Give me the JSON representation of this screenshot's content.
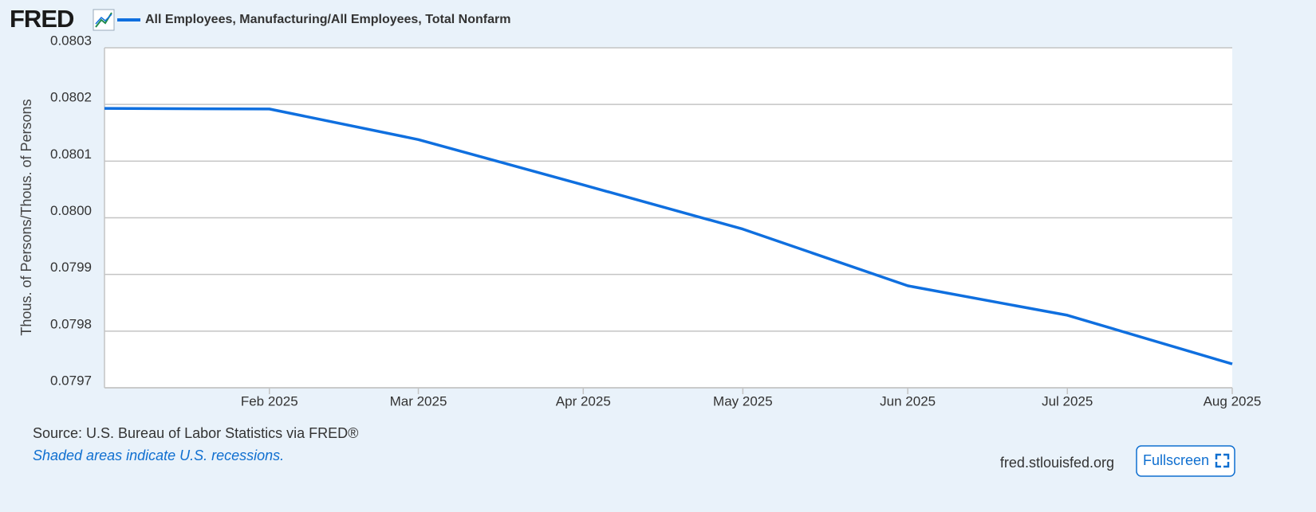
{
  "logo": "FRED",
  "chart_data": {
    "type": "line",
    "y_label": "Thous. of Persons/Thous. of Persons",
    "x": [
      "2025-01",
      "2025-02",
      "2025-03",
      "2025-04",
      "2025-05",
      "2025-06",
      "2025-07",
      "2025-08"
    ],
    "series": [
      {
        "name": "All Employees, Manufacturing/All Employees, Total Nonfarm",
        "color": "#0f6fdf",
        "values": [
          0.080193,
          0.080192,
          0.080138,
          0.080058,
          0.07998,
          0.07988,
          0.079828,
          0.079742
        ]
      }
    ],
    "xlim": [
      "2025-01",
      "2025-08"
    ],
    "xticks": [
      {
        "value": "2025-02",
        "label": "Feb 2025"
      },
      {
        "value": "2025-03",
        "label": "Mar 2025"
      },
      {
        "value": "2025-04",
        "label": "Apr 2025"
      },
      {
        "value": "2025-05",
        "label": "May 2025"
      },
      {
        "value": "2025-06",
        "label": "Jun 2025"
      },
      {
        "value": "2025-07",
        "label": "Jul 2025"
      },
      {
        "value": "2025-08",
        "label": "Aug 2025"
      }
    ],
    "ylim": [
      0.0797,
      0.0803
    ],
    "yticks": [
      0.0797,
      0.0798,
      0.0799,
      {
        "value": 0.08,
        "label": "0.0800"
      },
      0.0801,
      0.0802,
      0.0803
    ],
    "grid": true
  },
  "footer": {
    "source": "Source: U.S. Bureau of Labor Statistics via FRED®",
    "note": "Shaded areas indicate U.S. recessions.",
    "site": "fred.stlouisfed.org",
    "button": "Fullscreen"
  }
}
